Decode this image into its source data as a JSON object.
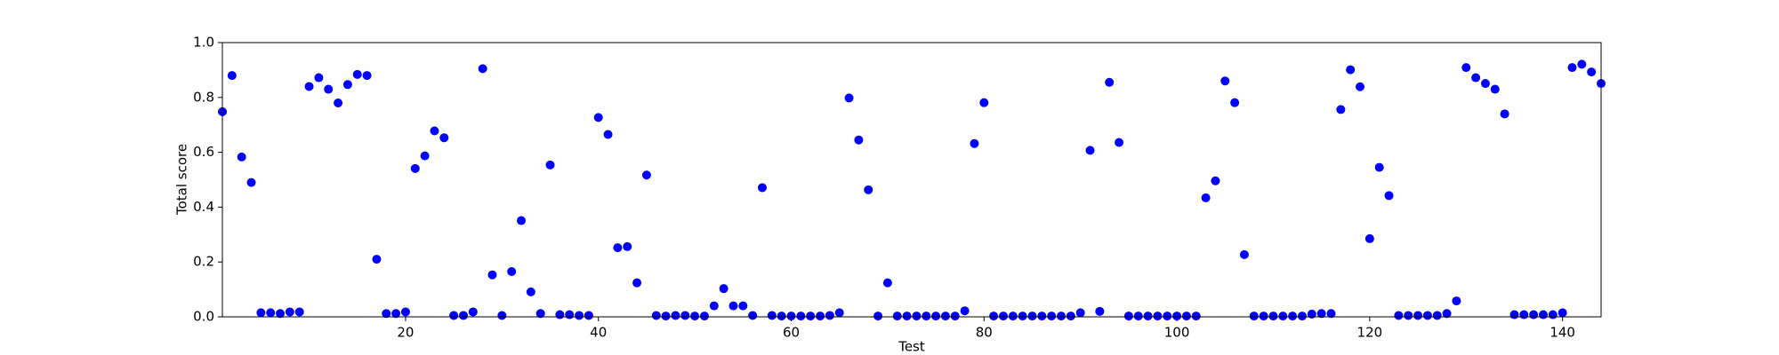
{
  "chart_data": {
    "type": "scatter",
    "xlabel": "Test",
    "ylabel": "Total score",
    "color": "#0000ff",
    "x": [
      1,
      2,
      3,
      4,
      5,
      6,
      7,
      8,
      9,
      10,
      11,
      12,
      13,
      14,
      15,
      16,
      17,
      18,
      19,
      20,
      21,
      22,
      23,
      24,
      25,
      26,
      27,
      28,
      29,
      30,
      31,
      32,
      33,
      34,
      35,
      36,
      37,
      38,
      39,
      40,
      41,
      42,
      43,
      44,
      45,
      46,
      47,
      48,
      49,
      50,
      51,
      52,
      53,
      54,
      55,
      56,
      57,
      58,
      59,
      60,
      61,
      62,
      63,
      64,
      65,
      66,
      67,
      68,
      69,
      70,
      71,
      72,
      73,
      74,
      75,
      76,
      77,
      78,
      79,
      80,
      81,
      82,
      83,
      84,
      85,
      86,
      87,
      88,
      89,
      90,
      91,
      92,
      93,
      94,
      95,
      96,
      97,
      98,
      99,
      100,
      101,
      102,
      103,
      104,
      105,
      106,
      107,
      108,
      109,
      110,
      111,
      112,
      113,
      114,
      115,
      116,
      117,
      118,
      119,
      120,
      121,
      122,
      123,
      124,
      125,
      126,
      127,
      128,
      129,
      130,
      131,
      132,
      133,
      134,
      135,
      136,
      137,
      138,
      139,
      140,
      141,
      142,
      143,
      144
    ],
    "values": [
      0.748,
      0.88,
      0.583,
      0.49,
      0.015,
      0.015,
      0.012,
      0.018,
      0.018,
      0.84,
      0.872,
      0.83,
      0.78,
      0.847,
      0.884,
      0.88,
      0.21,
      0.012,
      0.012,
      0.018,
      0.541,
      0.587,
      0.678,
      0.653,
      0.005,
      0.005,
      0.018,
      0.905,
      0.153,
      0.005,
      0.165,
      0.351,
      0.091,
      0.012,
      0.554,
      0.008,
      0.008,
      0.005,
      0.005,
      0.727,
      0.665,
      0.252,
      0.256,
      0.124,
      0.517,
      0.005,
      0.003,
      0.005,
      0.005,
      0.003,
      0.003,
      0.04,
      0.103,
      0.04,
      0.04,
      0.005,
      0.471,
      0.005,
      0.003,
      0.003,
      0.003,
      0.003,
      0.003,
      0.005,
      0.015,
      0.798,
      0.645,
      0.463,
      0.003,
      0.124,
      0.003,
      0.003,
      0.003,
      0.003,
      0.003,
      0.003,
      0.003,
      0.022,
      0.632,
      0.781,
      0.003,
      0.003,
      0.003,
      0.003,
      0.003,
      0.003,
      0.003,
      0.003,
      0.003,
      0.015,
      0.607,
      0.02,
      0.855,
      0.636,
      0.003,
      0.003,
      0.003,
      0.003,
      0.003,
      0.003,
      0.003,
      0.003,
      0.434,
      0.496,
      0.86,
      0.781,
      0.227,
      0.003,
      0.003,
      0.003,
      0.003,
      0.003,
      0.003,
      0.01,
      0.012,
      0.012,
      0.756,
      0.901,
      0.839,
      0.285,
      0.545,
      0.442,
      0.005,
      0.005,
      0.005,
      0.005,
      0.005,
      0.012,
      0.058,
      0.909,
      0.872,
      0.851,
      0.83,
      0.74,
      0.008,
      0.008,
      0.008,
      0.008,
      0.008,
      0.015,
      0.909,
      0.921,
      0.893,
      0.851
    ],
    "xlim": [
      1,
      144
    ],
    "ylim": [
      0,
      1
    ],
    "xticks": [
      20,
      40,
      60,
      80,
      100,
      120,
      140
    ],
    "yticks": [
      {
        "value": 0,
        "label": "0.0"
      },
      {
        "value": 0.2,
        "label": "0.2"
      },
      {
        "value": 0.4,
        "label": "0.4"
      },
      {
        "value": 0.6,
        "label": "0.6"
      },
      {
        "value": 0.8,
        "label": "0.8"
      },
      {
        "value": 1,
        "label": "1.0"
      }
    ]
  }
}
